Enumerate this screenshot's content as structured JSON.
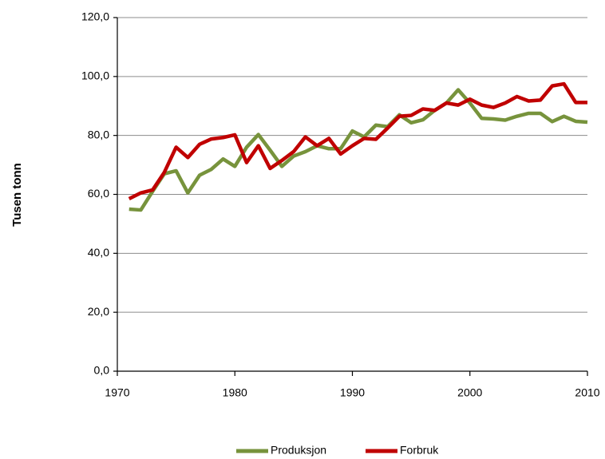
{
  "chart_data": {
    "type": "line",
    "y_label": "Tusen tonn",
    "x": [
      1971,
      1972,
      1973,
      1974,
      1975,
      1976,
      1977,
      1978,
      1979,
      1980,
      1981,
      1982,
      1983,
      1984,
      1985,
      1986,
      1987,
      1988,
      1989,
      1990,
      1991,
      1992,
      1993,
      1994,
      1995,
      1996,
      1997,
      1998,
      1999,
      2000,
      2001,
      2002,
      2003,
      2004,
      2005,
      2006,
      2007,
      2008,
      2009,
      2010
    ],
    "series": [
      {
        "name": "Produksjon",
        "color": "#77933c",
        "values": [
          55,
          54.7,
          61,
          67,
          68,
          60.5,
          66.5,
          68.5,
          72,
          69.5,
          76,
          80.3,
          75,
          69.5,
          73,
          74.5,
          76.5,
          75.5,
          75.5,
          81.5,
          79.5,
          83.5,
          83,
          87,
          84.3,
          85.3,
          88.5,
          91,
          95.5,
          91,
          85.8,
          85.6,
          85.2,
          86.5,
          87.5,
          87.5,
          84.7,
          86.5,
          84.8,
          84.5
        ]
      },
      {
        "name": "Forbruk",
        "color": "#c00000",
        "values": [
          58.5,
          60.5,
          61.5,
          67.5,
          76,
          72.5,
          77,
          78.8,
          79.3,
          80.2,
          70.8,
          76.5,
          68.8,
          71.5,
          74.5,
          79.5,
          76.5,
          79,
          73.7,
          76.5,
          79,
          78.7,
          82.5,
          86.5,
          86.8,
          89,
          88.5,
          91,
          90.3,
          92.3,
          90.3,
          89.5,
          91,
          93.2,
          91.7,
          92,
          96.8,
          97.5,
          91.2,
          91.2
        ]
      }
    ],
    "xlim": [
      1970,
      2010
    ],
    "xticks": [
      1970,
      1980,
      1990,
      2000,
      2010
    ],
    "ylim": [
      0,
      120
    ],
    "yticks": [
      {
        "value": 0,
        "label": "0,0"
      },
      {
        "value": 20,
        "label": "20,0"
      },
      {
        "value": 40,
        "label": "40,0"
      },
      {
        "value": 60,
        "label": "60,0"
      },
      {
        "value": 80,
        "label": "80,0"
      },
      {
        "value": 100,
        "label": "100,0"
      },
      {
        "value": 120,
        "label": "120,0"
      }
    ],
    "grid": true,
    "legend": "bottom"
  }
}
